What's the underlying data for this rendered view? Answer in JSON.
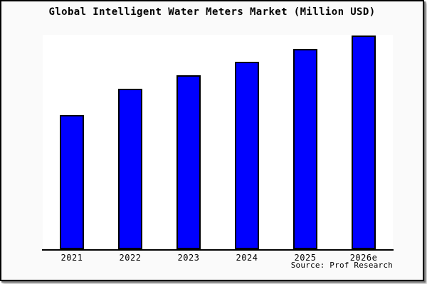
{
  "chart_data": {
    "type": "bar",
    "title": "Global Intelligent Water Meters Market (Million USD)",
    "categories": [
      "2021",
      "2022",
      "2023",
      "2024",
      "2025",
      "2026e"
    ],
    "values": [
      62.8,
      75.1,
      81.4,
      87.7,
      93.7,
      100
    ],
    "value_note": "No y-axis scale, ticks or data labels are shown in the image; values are relative bar heights with the tallest bar (2026e) normalized to 100.",
    "xlabel": "",
    "ylabel": "",
    "y_axis": "none (unlabeled, no ticks)",
    "grid": false,
    "legend_position": "none",
    "source_label": "Source: Prof Research",
    "bar_color": "#0000ff",
    "bar_border_color": "#000000",
    "axis_color": "#000000",
    "background_color": "#fafafa",
    "plot_background_color": "#ffffff",
    "frame_border_color": "#000000"
  }
}
